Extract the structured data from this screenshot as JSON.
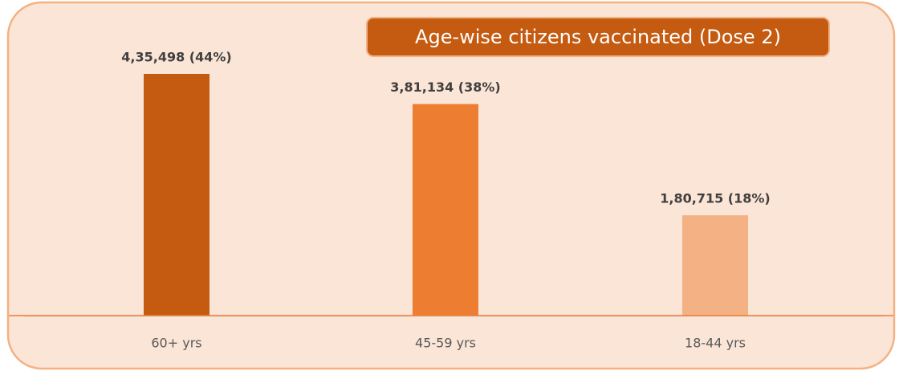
{
  "chart_data": {
    "type": "bar",
    "title": "Age-wise citizens vaccinated (Dose 2)",
    "categories": [
      "60+ yrs",
      "45-59 yrs",
      "18-44 yrs"
    ],
    "values": [
      435498,
      381134,
      180715
    ],
    "value_labels": [
      "4,35,498 (44%)",
      "3,81,134 (38%)",
      "1,80,715 (18%)"
    ],
    "colors": [
      "#c55a11",
      "#ed7d31",
      "#f4b183"
    ]
  }
}
